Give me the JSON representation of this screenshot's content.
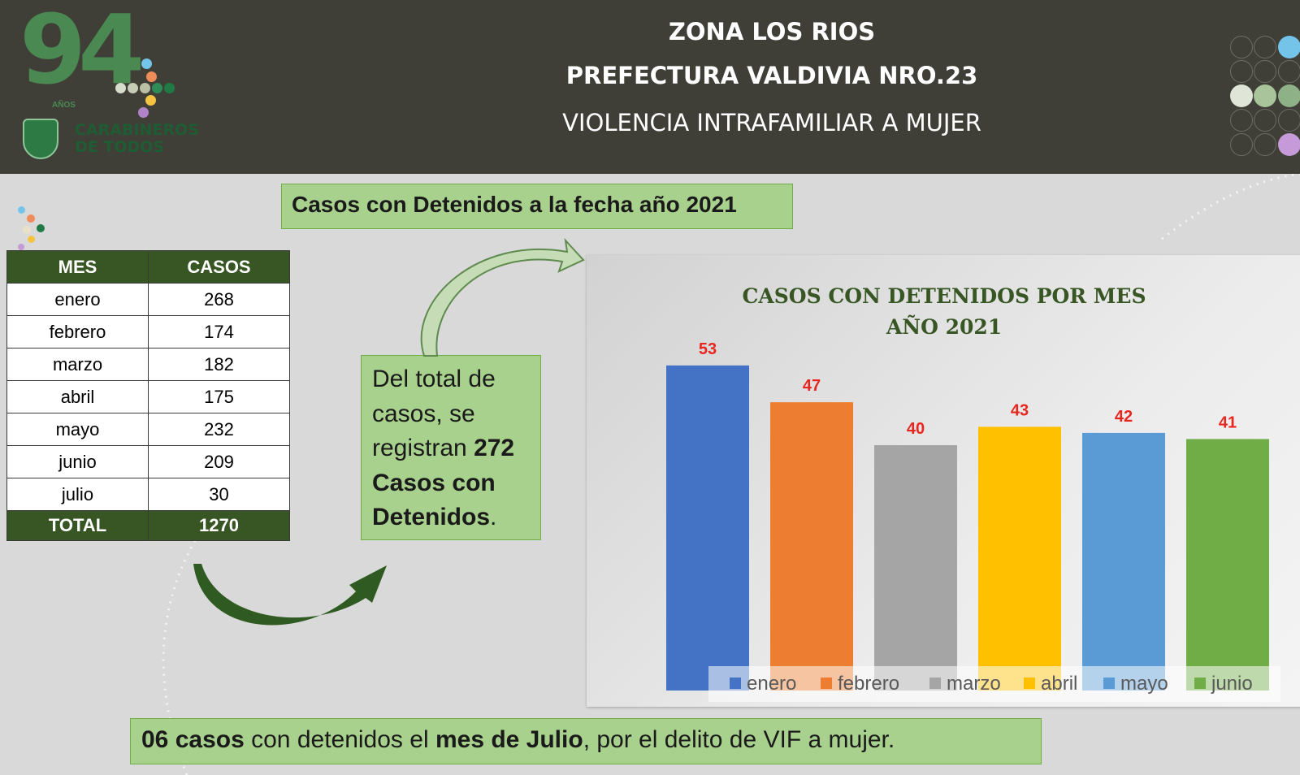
{
  "header": {
    "line1": "ZONA LOS RIOS",
    "line2": "PREFECTURA VALDIVIA NRO.23",
    "line3": "VIOLENCIA INTRAFAMILIAR A MUJER"
  },
  "logo": {
    "number": "94",
    "years_label": "AÑOS",
    "org_line1": "CARABINEROS",
    "org_line2": "DE TODOS"
  },
  "top_label": "Casos con Detenidos a la fecha año 2021",
  "table": {
    "headers": [
      "MES",
      "CASOS"
    ],
    "rows": [
      {
        "month": "enero",
        "cases": "268"
      },
      {
        "month": "febrero",
        "cases": "174"
      },
      {
        "month": "marzo",
        "cases": "182"
      },
      {
        "month": "abril",
        "cases": "175"
      },
      {
        "month": "mayo",
        "cases": "232"
      },
      {
        "month": "junio",
        "cases": "209"
      },
      {
        "month": "julio",
        "cases": "30"
      }
    ],
    "total_label": "TOTAL",
    "total_value": "1270"
  },
  "callout": {
    "t1": "Del total de",
    "t2": "casos, se",
    "t3": "registran ",
    "t3b": "272",
    "t4": "Casos con",
    "t5": "Detenidos",
    "t5end": "."
  },
  "bottom": {
    "b1": "06 casos",
    "t1": " con detenidos el ",
    "b2": "mes de Julio",
    "t2": ", por el delito de VIF a mujer."
  },
  "chart_data": {
    "type": "bar",
    "title_line1": "CASOS CON DETENIDOS POR MES",
    "title_line2": "AÑO 2021",
    "categories": [
      "enero",
      "febrero",
      "marzo",
      "abril",
      "mayo",
      "junio"
    ],
    "values": [
      53,
      47,
      40,
      43,
      42,
      41
    ],
    "colors": [
      "#4472c4",
      "#ed7d31",
      "#a5a5a5",
      "#ffc000",
      "#5b9bd5",
      "#70ad47"
    ],
    "label_color": "#e8251e",
    "legend_position": "bottom",
    "grid": false
  }
}
